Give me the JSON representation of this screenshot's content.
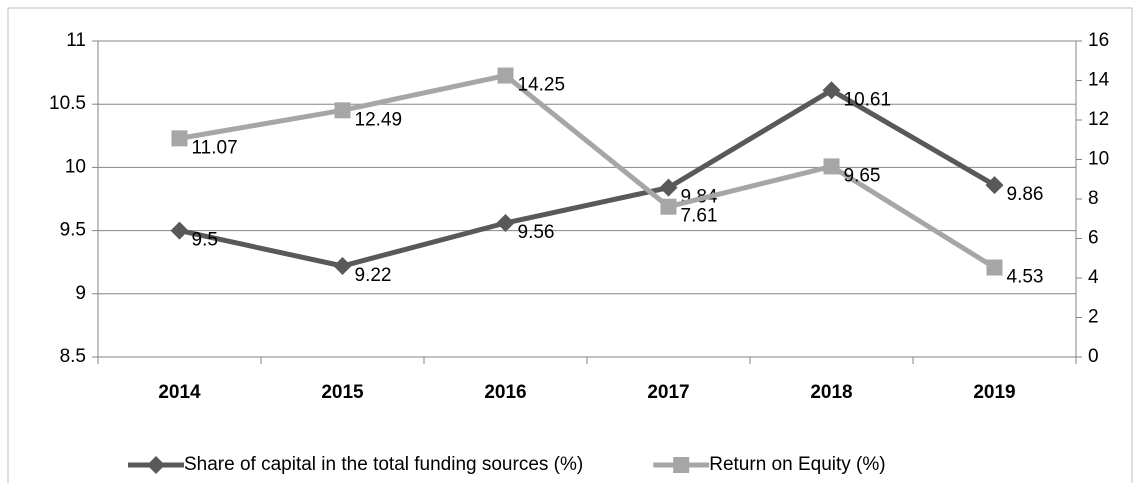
{
  "chart_data": {
    "type": "line",
    "categories": [
      "2014",
      "2015",
      "2016",
      "2017",
      "2018",
      "2019"
    ],
    "series": [
      {
        "name": "Share of capital in the total funding sources (%)",
        "color": "#595959",
        "marker": "diamond",
        "values": [
          9.5,
          9.22,
          9.56,
          9.84,
          10.61,
          9.86
        ]
      },
      {
        "name": "Return on Equity (%)",
        "color": "#a6a6a6",
        "marker": "square",
        "axis": "y2",
        "values": [
          11.07,
          12.49,
          14.25,
          7.61,
          9.65,
          4.53
        ]
      }
    ],
    "ylim": [
      8.5,
      11
    ],
    "yticks": [
      8.5,
      9,
      9.5,
      10,
      10.5,
      11
    ],
    "y2lim": [
      0,
      16
    ],
    "y2ticks": [
      0,
      2,
      4,
      6,
      8,
      10,
      12,
      14,
      16
    ],
    "grid": true,
    "legend": "bottom"
  }
}
